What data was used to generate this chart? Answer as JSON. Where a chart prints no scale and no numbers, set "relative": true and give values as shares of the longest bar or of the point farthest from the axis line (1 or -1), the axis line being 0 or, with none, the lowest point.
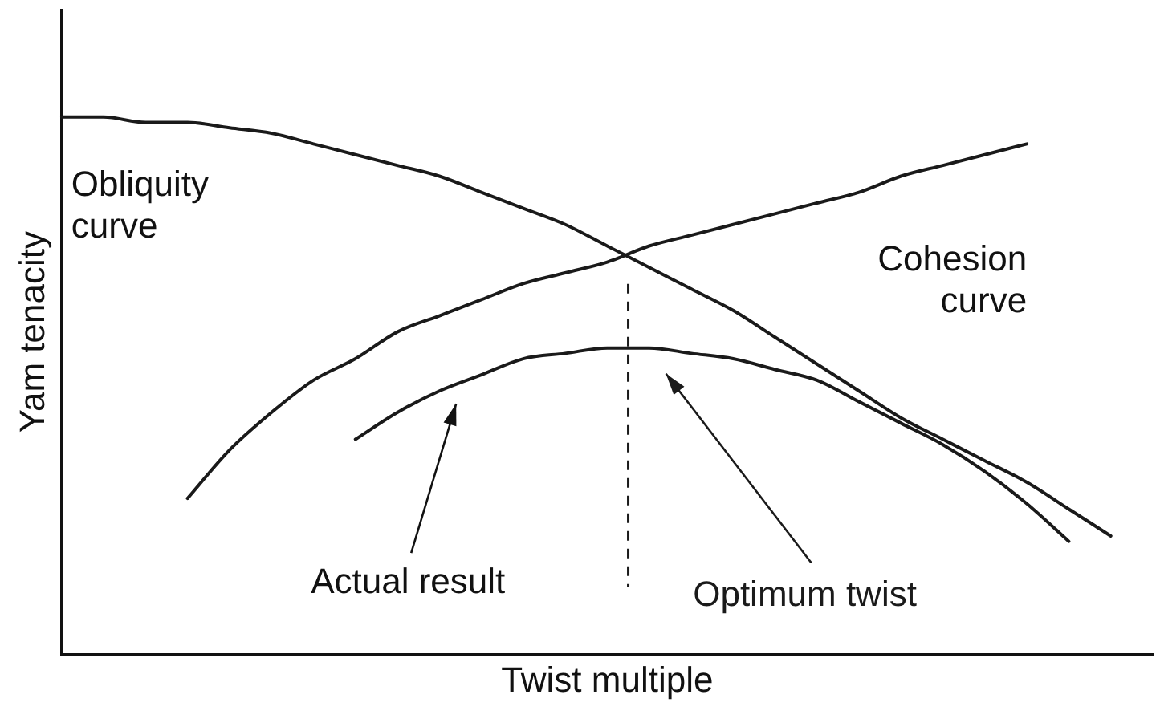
{
  "chart_data": {
    "type": "line",
    "relative": true,
    "xlabel": "Twist multiple",
    "ylabel": "Yam tenacity",
    "legend": false,
    "marker": "none",
    "line_style": "solid",
    "categories": [
      null,
      null,
      null,
      null,
      null,
      null,
      null,
      null,
      null,
      null,
      null,
      null,
      null,
      null,
      null,
      null,
      null,
      null,
      null,
      null,
      null,
      null,
      null,
      null,
      null,
      null,
      null
    ],
    "series": [
      {
        "name": "Obliquity curve",
        "color": "#1a1a1a",
        "values": [
          1.0,
          1.0,
          0.99,
          0.99,
          0.98,
          0.97,
          0.95,
          0.93,
          0.91,
          0.89,
          0.86,
          0.83,
          0.8,
          0.76,
          0.72,
          0.68,
          0.64,
          0.59,
          0.54,
          0.49,
          0.44,
          0.4,
          0.36,
          0.32,
          0.27,
          0.22,
          null
        ]
      },
      {
        "name": "Cohesion curve",
        "color": "#1a1a1a",
        "values": [
          null,
          null,
          null,
          0.29,
          0.38,
          0.45,
          0.51,
          0.55,
          0.6,
          0.63,
          0.66,
          0.69,
          0.71,
          0.73,
          0.76,
          0.78,
          0.8,
          0.82,
          0.84,
          0.86,
          0.89,
          0.91,
          0.93,
          0.95,
          null,
          null,
          null
        ]
      },
      {
        "color": "#1a1a1a",
        "values": [
          null,
          null,
          null,
          null,
          null,
          null,
          null,
          0.4,
          0.45,
          0.49,
          0.52,
          0.55,
          0.56,
          0.57,
          0.57,
          0.56,
          0.55,
          0.53,
          0.51,
          0.47,
          0.43,
          0.39,
          0.34,
          0.28,
          0.21,
          null,
          null
        ]
      }
    ],
    "ref_lines": [
      {
        "axis": "x",
        "label": "Optimum twist",
        "line_style": "dashed",
        "color": "#1a1a1a"
      }
    ],
    "annotations": [
      "Actual result"
    ]
  }
}
